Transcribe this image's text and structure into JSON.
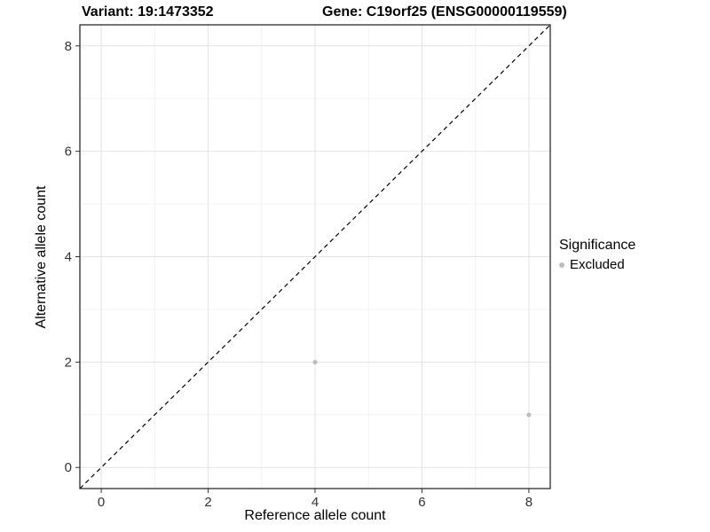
{
  "titles": {
    "left": "Variant: 19:1473352",
    "right": "Gene: C19orf25 (ENSG00000119559)"
  },
  "legend": {
    "title": "Significance",
    "items": [
      {
        "label": "Excluded",
        "color": "#bdbdbd"
      }
    ]
  },
  "colors": {
    "panel_border": "#1a1a1a",
    "grid_major": "#e4e4e4",
    "grid_minor": "#f2f2f2",
    "tick": "#333333",
    "tick_label": "#333333",
    "identity_line": "#000000",
    "point": "#bdbdbd"
  },
  "chart_data": {
    "type": "scatter",
    "title_left": "Variant: 19:1473352",
    "title_right": "Gene: C19orf25 (ENSG00000119559)",
    "xlabel": "Reference allele count",
    "ylabel": "Alternative allele count",
    "xlim": [
      -0.4,
      8.4
    ],
    "ylim": [
      -0.4,
      8.4
    ],
    "x_ticks": [
      0,
      2,
      4,
      6,
      8
    ],
    "y_ticks": [
      0,
      2,
      4,
      6,
      8
    ],
    "x_minor_ticks": [
      1,
      3,
      5,
      7
    ],
    "y_minor_ticks": [
      1,
      3,
      5,
      7
    ],
    "grid": true,
    "legend_position": "right",
    "identity_line": {
      "style": "dashed",
      "x1": -0.4,
      "y1": -0.4,
      "x2": 8.4,
      "y2": 8.4
    },
    "series": [
      {
        "name": "Excluded",
        "color": "#bdbdbd",
        "points": [
          {
            "x": 4,
            "y": 2
          },
          {
            "x": 8,
            "y": 1
          }
        ]
      }
    ]
  }
}
